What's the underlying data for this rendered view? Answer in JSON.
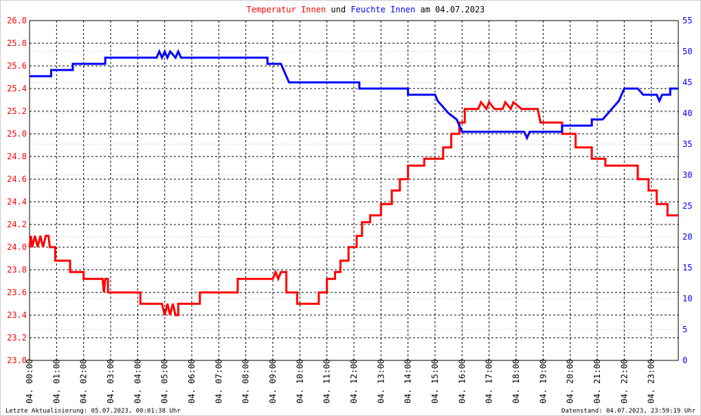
{
  "chart_data": {
    "type": "line",
    "title_connector": "und",
    "title_date": "am 04.07.2023",
    "footer_left": "Letzte Aktualisierung: 05.07.2023, 00:01:38 Uhr",
    "footer_right": "Datenstand: 04.07.2023, 23:59:19 Uhr",
    "grid": true,
    "xlim": [
      0,
      24
    ],
    "xticks": [
      {
        "value": 0,
        "label": "04. 00:00"
      },
      {
        "value": 1,
        "label": "04. 01:00"
      },
      {
        "value": 2,
        "label": "04. 02:00"
      },
      {
        "value": 3,
        "label": "04. 03:00"
      },
      {
        "value": 4,
        "label": "04. 04:00"
      },
      {
        "value": 5,
        "label": "04. 05:00"
      },
      {
        "value": 6,
        "label": "04. 06:00"
      },
      {
        "value": 7,
        "label": "04. 07:00"
      },
      {
        "value": 8,
        "label": "04. 08:00"
      },
      {
        "value": 9,
        "label": "04. 09:00"
      },
      {
        "value": 10,
        "label": "04. 10:00"
      },
      {
        "value": 11,
        "label": "04. 11:00"
      },
      {
        "value": 12,
        "label": "04. 12:00"
      },
      {
        "value": 13,
        "label": "04. 13:00"
      },
      {
        "value": 14,
        "label": "04. 14:00"
      },
      {
        "value": 15,
        "label": "04. 15:00"
      },
      {
        "value": 16,
        "label": "04. 16:00"
      },
      {
        "value": 17,
        "label": "04. 17:00"
      },
      {
        "value": 18,
        "label": "04. 18:00"
      },
      {
        "value": 19,
        "label": "04. 19:00"
      },
      {
        "value": 20,
        "label": "04. 20:00"
      },
      {
        "value": 21,
        "label": "04. 21:00"
      },
      {
        "value": 22,
        "label": "04. 22:00"
      },
      {
        "value": 23,
        "label": "04. 23:00"
      }
    ],
    "ylim": [
      23.0,
      26.0
    ],
    "yticks": [
      {
        "value": 23,
        "label": "23.0"
      },
      23.2,
      23.4,
      23.6,
      23.8,
      {
        "value": 24,
        "label": "24.0"
      },
      24.2,
      24.4,
      24.6,
      24.8,
      {
        "value": 25,
        "label": "25.0"
      },
      25.2,
      25.4,
      25.6,
      25.8,
      {
        "value": 26,
        "label": "26.0"
      }
    ],
    "y2lim": [
      0,
      55
    ],
    "y2ticks": [
      0,
      5,
      10,
      15,
      20,
      25,
      30,
      35,
      40,
      45,
      50,
      55
    ],
    "series": [
      {
        "name": "Temperatur Innen",
        "color": "#ff0000",
        "x": [
          0,
          0.05,
          0.1,
          0.2,
          0.3,
          0.4,
          0.5,
          0.6,
          0.7,
          0.75,
          0.95,
          0.95,
          1.5,
          1.5,
          2.0,
          2.0,
          2.7,
          2.75,
          2.8,
          2.9,
          2.9,
          4.1,
          4.1,
          4.9,
          5.0,
          5.1,
          5.2,
          5.3,
          5.4,
          5.5,
          5.5,
          6.3,
          6.3,
          7.7,
          7.7,
          9.0,
          9.1,
          9.2,
          9.3,
          9.5,
          9.5,
          9.9,
          9.9,
          10.7,
          10.7,
          11.0,
          11.0,
          11.3,
          11.3,
          11.5,
          11.5,
          11.8,
          11.8,
          12.1,
          12.1,
          12.3,
          12.3,
          12.6,
          12.6,
          13.0,
          13.0,
          13.4,
          13.4,
          13.7,
          13.7,
          14.0,
          14.0,
          14.6,
          14.6,
          15.3,
          15.3,
          15.6,
          15.6,
          15.9,
          15.9,
          16.1,
          16.1,
          16.6,
          16.7,
          16.9,
          17.0,
          17.2,
          17.5,
          17.6,
          17.8,
          17.9,
          18.2,
          18.8,
          18.9,
          19.7,
          19.7,
          20.2,
          20.2,
          20.8,
          20.8,
          21.3,
          21.3,
          22.5,
          22.5,
          22.9,
          22.9,
          23.2,
          23.2,
          23.6,
          23.6,
          24
        ],
        "values": [
          24.0,
          24.1,
          24.0,
          24.1,
          24.0,
          24.1,
          24.0,
          24.1,
          24.1,
          24.0,
          24.0,
          23.88,
          23.88,
          23.78,
          23.78,
          23.72,
          23.72,
          23.6,
          23.72,
          23.72,
          23.6,
          23.6,
          23.5,
          23.5,
          23.4,
          23.5,
          23.4,
          23.5,
          23.4,
          23.4,
          23.5,
          23.5,
          23.6,
          23.6,
          23.72,
          23.72,
          23.78,
          23.72,
          23.78,
          23.78,
          23.6,
          23.6,
          23.5,
          23.5,
          23.6,
          23.6,
          23.72,
          23.72,
          23.78,
          23.78,
          23.88,
          23.88,
          24.0,
          24.0,
          24.1,
          24.1,
          24.22,
          24.22,
          24.28,
          24.28,
          24.38,
          24.38,
          24.5,
          24.5,
          24.6,
          24.6,
          24.72,
          24.72,
          24.78,
          24.78,
          24.88,
          24.88,
          25.0,
          25.0,
          25.1,
          25.1,
          25.22,
          25.22,
          25.28,
          25.22,
          25.28,
          25.22,
          25.22,
          25.28,
          25.22,
          25.28,
          25.22,
          25.22,
          25.1,
          25.1,
          25.0,
          25.0,
          24.88,
          24.88,
          24.78,
          24.78,
          24.72,
          24.72,
          24.6,
          24.6,
          24.5,
          24.5,
          24.38,
          24.38,
          24.28,
          24.28
        ]
      },
      {
        "name": "Feuchte Innen",
        "color": "#0000ff",
        "axis": "y2",
        "x": [
          0,
          0.8,
          0.8,
          1.6,
          1.6,
          2.8,
          2.8,
          4.7,
          4.8,
          4.9,
          5.0,
          5.1,
          5.2,
          5.4,
          5.5,
          5.6,
          8.8,
          8.8,
          9.3,
          9.4,
          9.5,
          9.6,
          12.2,
          12.2,
          14.0,
          14.0,
          15.0,
          15.1,
          15.3,
          15.5,
          15.8,
          16.0,
          18.3,
          18.4,
          18.5,
          19.7,
          19.7,
          20.8,
          20.8,
          21.2,
          21.4,
          21.6,
          21.8,
          22.0,
          22.5,
          22.7,
          23.2,
          23.3,
          23.4,
          23.7,
          23.7,
          24
        ],
        "values": [
          46,
          46,
          47,
          47,
          48,
          48,
          49,
          49,
          50,
          49,
          50,
          49,
          50,
          49,
          50,
          49,
          49,
          48,
          48,
          47,
          46,
          45,
          45,
          44,
          44,
          43,
          43,
          42,
          41,
          40,
          39,
          37,
          37,
          36,
          37,
          37,
          38,
          38,
          39,
          39,
          40,
          41,
          42,
          44,
          44,
          43,
          43,
          42,
          43,
          43,
          44,
          44
        ]
      }
    ]
  }
}
